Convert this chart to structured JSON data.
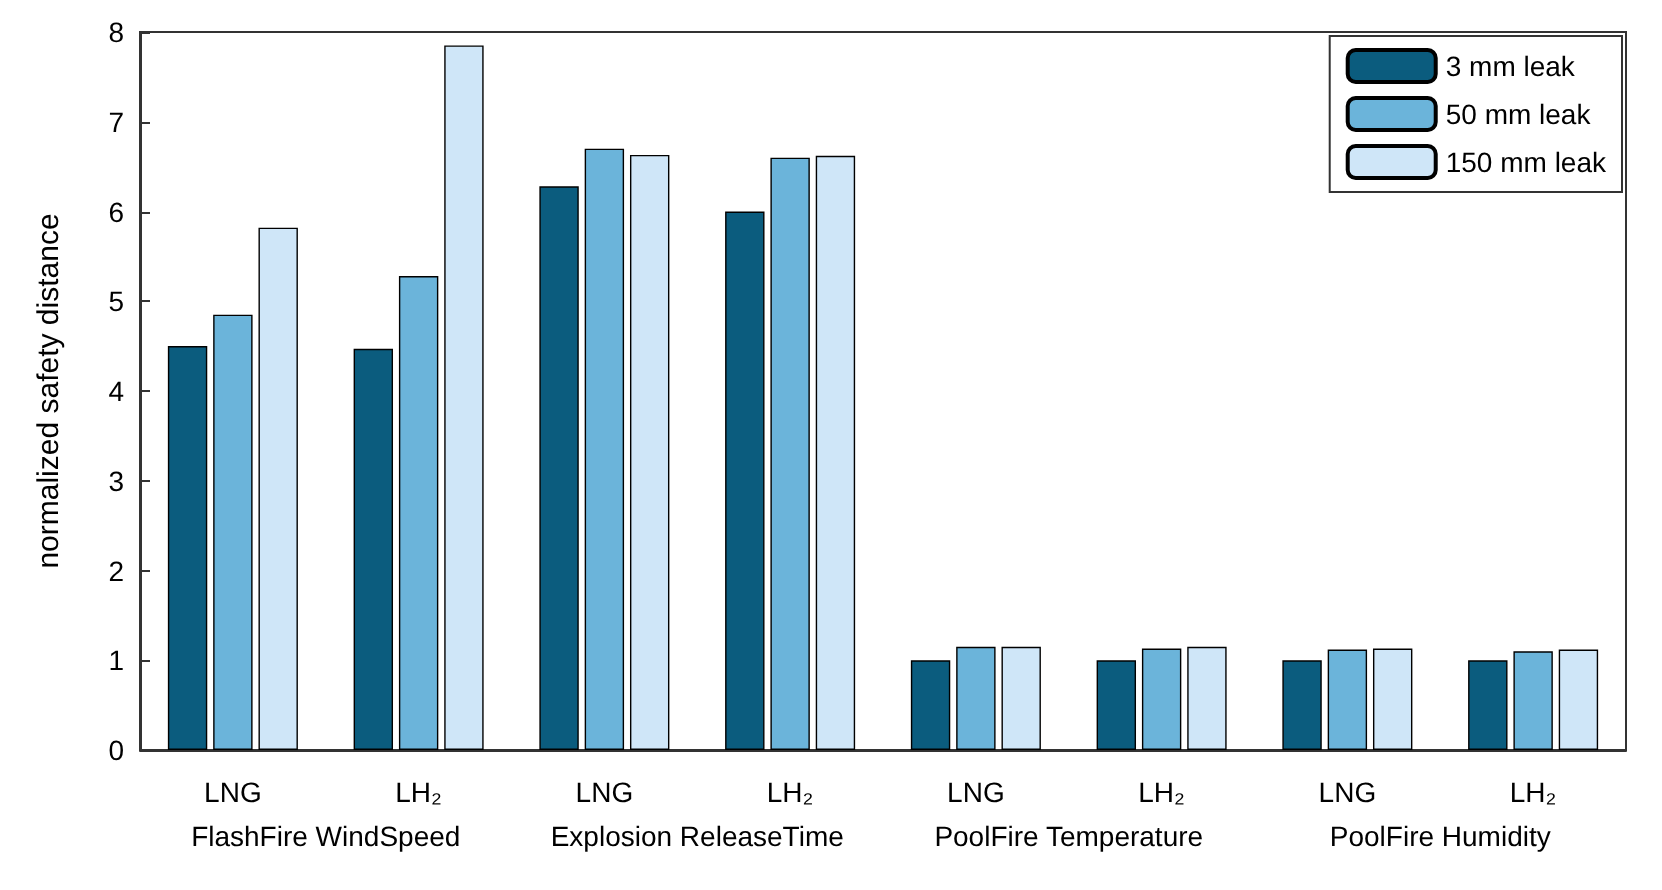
{
  "chart_data": {
    "type": "bar",
    "ylabel": "normalized safety distance",
    "categories": [
      "LNG",
      "LH₂",
      "LNG",
      "LH₂",
      "LNG",
      "LH₂",
      "LNG",
      "LH₂"
    ],
    "annotations": [
      "FlashFire WindSpeed",
      "Explosion ReleaseTime",
      "PoolFire Temperature",
      "PoolFire Humidity"
    ],
    "series": [
      {
        "name": "3 mm leak",
        "color": "#0b5c7e",
        "values": [
          4.5,
          4.47,
          6.28,
          6.0,
          1.0,
          1.0,
          1.0,
          1.0
        ]
      },
      {
        "name": "50 mm leak",
        "color": "#6bb4da",
        "values": [
          4.85,
          5.28,
          6.7,
          6.6,
          1.15,
          1.13,
          1.12,
          1.1
        ]
      },
      {
        "name": "150 mm leak",
        "color": "#cfe6f8",
        "values": [
          5.82,
          7.85,
          6.63,
          6.62,
          1.15,
          1.15,
          1.13,
          1.12
        ]
      }
    ],
    "ylim": [
      0,
      8
    ],
    "yticks": [
      0,
      1,
      2,
      3,
      4,
      5,
      6,
      7,
      8
    ],
    "grid": false,
    "legend": "top right"
  }
}
